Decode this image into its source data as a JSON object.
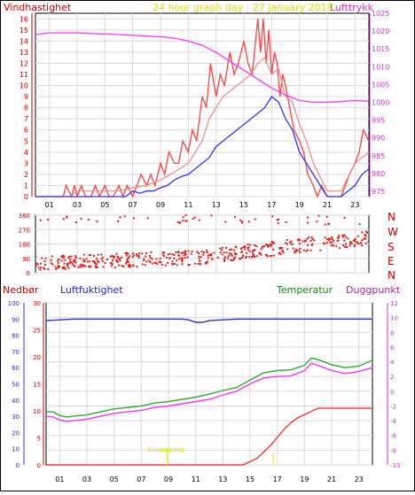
{
  "header": {
    "left_label": "Vindhastighet",
    "title": "24 hour graph day : 27 January 2018",
    "right_label": "Lufttrykk"
  },
  "bottom_labels": {
    "nedbor": "Nedbør",
    "luftfuktighet": "Luftfuktighet",
    "temperatur": "Temperatur",
    "duggpunkt": "Duggpunkt",
    "soloppgang": "Soloppgang"
  },
  "compass": [
    "N",
    "W",
    "S",
    "E",
    "N"
  ],
  "colors": {
    "wind_gust": "#ff4040",
    "wind_avg": "#ee8888",
    "wind_blue": "#3333ff",
    "pressure": "#ff33ff",
    "humidity": "#3030cc",
    "temperature": "#33aa33",
    "dewpoint": "#ff33ff",
    "rain": "#ff3333",
    "grid": "#d9d9d9"
  },
  "chart_data": [
    {
      "type": "line",
      "title": "24 hour graph day : 27 January 2018",
      "x_ticks": [
        "01",
        "03",
        "05",
        "07",
        "09",
        "11",
        "13",
        "15",
        "17",
        "19",
        "21",
        "23"
      ],
      "y_left_label": "Vindhastighet",
      "y_left_ticks": [
        "0",
        "1",
        "2",
        "3",
        "4",
        "5",
        "6",
        "7",
        "8",
        "9",
        "10",
        "11",
        "12",
        "13",
        "14",
        "15",
        "16"
      ],
      "y_left_lim": [
        0,
        16.5
      ],
      "y_right_label": "Lufttrykk",
      "y_right_ticks": [
        "975",
        "980",
        "985",
        "990",
        "995",
        "1000",
        "1005",
        "1010",
        "1015",
        "1020",
        "1025"
      ],
      "y_right_lim": [
        973.5,
        1025
      ],
      "series": [
        {
          "name": "gust",
          "axis": "left",
          "x": [
            0,
            2,
            2.2,
            2.6,
            2.8,
            3,
            3.3,
            3.6,
            4,
            4.3,
            4.6,
            5,
            5.3,
            5.6,
            6,
            6.3,
            6.6,
            7,
            7.3,
            7.6,
            8,
            8.3,
            8.6,
            9,
            9.3,
            9.6,
            10,
            10.3,
            10.6,
            11,
            11.3,
            11.6,
            12,
            12.3,
            12.6,
            13,
            13.3,
            13.6,
            14,
            14.3,
            14.6,
            15,
            15.3,
            15.6,
            16,
            16.2,
            16.4,
            16.6,
            16.8,
            17,
            17.2,
            17.4,
            17.6,
            17.8,
            18,
            18.3,
            18.6,
            19,
            19.3,
            19.6,
            20,
            20.3,
            20.6,
            21,
            21.5,
            22,
            22.3,
            22.6,
            23,
            23.3,
            23.6,
            24
          ],
          "values": [
            0,
            0,
            1,
            0,
            1,
            0,
            1,
            0,
            0,
            1,
            0,
            1,
            0,
            0,
            1,
            0,
            1,
            0,
            1,
            2,
            1,
            2,
            1,
            3,
            2,
            4,
            3,
            3,
            5,
            4,
            6,
            5,
            9,
            8,
            12,
            9,
            11,
            10,
            13,
            11,
            12,
            14,
            12,
            11,
            16,
            13,
            16,
            12,
            15,
            11,
            13,
            12,
            9,
            11,
            10,
            8,
            6,
            5,
            4,
            2,
            1,
            0,
            1,
            0,
            0,
            0,
            1,
            2,
            3,
            4,
            6,
            5
          ]
        },
        {
          "name": "avg",
          "axis": "left",
          "x": [
            0,
            2.5,
            3,
            4,
            5,
            6,
            7,
            8,
            9,
            10,
            11,
            12,
            12.5,
            13,
            13.5,
            14,
            14.5,
            15,
            15.5,
            16,
            16.5,
            17,
            17.5,
            18,
            18.5,
            19,
            19.5,
            20,
            21,
            22,
            23,
            24
          ],
          "values": [
            0,
            0,
            0.5,
            0.5,
            0.5,
            0.5,
            0.8,
            1,
            1.5,
            2.2,
            3,
            5,
            7,
            8,
            9,
            9.5,
            10,
            10.5,
            11,
            12,
            12.5,
            11,
            11.5,
            9,
            8.5,
            6.5,
            5,
            3,
            0.5,
            0.5,
            3,
            4
          ]
        },
        {
          "name": "blue",
          "axis": "left",
          "x": [
            0,
            6.5,
            7,
            7.5,
            8,
            8.5,
            9,
            9.5,
            10,
            10.5,
            11,
            11.5,
            12,
            12.5,
            13,
            13.5,
            14,
            14.5,
            15,
            15.5,
            16,
            16.5,
            17,
            17.5,
            18,
            18.5,
            19,
            19.5,
            20,
            20.5,
            21,
            22,
            22.5,
            23,
            23.5,
            24
          ],
          "values": [
            0,
            0,
            0.5,
            0.3,
            0.5,
            0.5,
            0.8,
            1,
            1.5,
            1.8,
            2,
            2.5,
            3,
            3.5,
            4.5,
            5,
            5.5,
            6,
            6.5,
            7,
            7.5,
            8,
            9,
            8.5,
            7,
            6,
            4,
            3,
            2,
            1,
            0,
            0,
            0.5,
            1,
            2,
            2.5
          ]
        },
        {
          "name": "pressure",
          "axis": "right",
          "x": [
            0,
            1,
            2,
            3,
            4,
            5,
            6,
            7,
            8,
            9,
            10,
            11,
            12,
            13,
            14,
            15,
            16,
            17,
            18,
            19,
            20,
            21,
            22,
            23,
            24
          ],
          "values": [
            1019,
            1019.5,
            1019.5,
            1019.5,
            1019.3,
            1019.2,
            1019,
            1018.8,
            1018.6,
            1018.4,
            1018,
            1017.2,
            1016,
            1014,
            1011.5,
            1009,
            1006.5,
            1004,
            1002,
            1000.5,
            1000,
            1000,
            1000.2,
            1000.5,
            1000.3
          ]
        }
      ]
    },
    {
      "type": "scatter",
      "title": "",
      "y_ticks": [
        "360",
        "270",
        "180",
        "90",
        "0"
      ],
      "y_lim": [
        0,
        360
      ],
      "x_ticks": [
        "01",
        "03",
        "05",
        "07",
        "09",
        "11",
        "13",
        "15",
        "17",
        "19",
        "21",
        "23"
      ]
    },
    {
      "type": "line",
      "title": "",
      "x_ticks": [
        "01",
        "03",
        "05",
        "07",
        "09",
        "11",
        "13",
        "15",
        "17",
        "19",
        "21",
        "23"
      ],
      "y_rain_ticks": [
        "0",
        "10",
        "20",
        "30",
        "40",
        "50",
        "60",
        "70",
        "80",
        "90",
        "100"
      ],
      "y_hum_ticks": [
        "0",
        "5",
        "10",
        "15",
        "20",
        "25",
        "30"
      ],
      "y_temp_ticks": [
        "-10",
        "-8",
        "-6",
        "-4",
        "-2",
        "0",
        "2",
        "4",
        "6",
        "8",
        "10",
        "12"
      ],
      "y_temp_lim": [
        -10,
        12
      ],
      "series": [
        {
          "name": "Luftfuktighet",
          "axis": "left",
          "x": [
            0,
            1,
            2,
            4,
            6,
            8,
            10,
            10.5,
            11,
            11.5,
            12,
            14,
            16,
            18,
            20,
            22,
            24
          ],
          "values": [
            89,
            89.5,
            90,
            90,
            90,
            90,
            90,
            89.5,
            88,
            88,
            89,
            90,
            90,
            90,
            90,
            90,
            90
          ]
        },
        {
          "name": "Temperatur",
          "axis": "right",
          "x": [
            0,
            0.5,
            1,
            1.5,
            2,
            3,
            4,
            5,
            6,
            7,
            8,
            9,
            10,
            11,
            12,
            13,
            14,
            15,
            16,
            17,
            18,
            19,
            19.5,
            20,
            21,
            22,
            23,
            24
          ],
          "values": [
            -2.8,
            -2.8,
            -3.3,
            -3.5,
            -3.4,
            -3.2,
            -2.8,
            -2.4,
            -2.2,
            -2,
            -1.6,
            -1.4,
            -1.1,
            -0.8,
            -0.4,
            0.1,
            0.5,
            1.5,
            2.5,
            2.8,
            2.9,
            3.5,
            4.5,
            4.3,
            3.6,
            3.2,
            3.4,
            4.2
          ]
        },
        {
          "name": "Duggpunkt",
          "axis": "right",
          "x": [
            0,
            0.5,
            1,
            1.5,
            2,
            3,
            4,
            5,
            6,
            7,
            8,
            9,
            10,
            11,
            12,
            13,
            14,
            15,
            16,
            17,
            18,
            19,
            19.5,
            20,
            21,
            22,
            23,
            24
          ],
          "values": [
            -3.4,
            -3.5,
            -3.9,
            -4.1,
            -4,
            -3.8,
            -3.4,
            -3,
            -2.8,
            -2.6,
            -2.2,
            -2,
            -1.7,
            -1.4,
            -1.1,
            -0.5,
            0,
            1,
            1.8,
            2,
            2.1,
            2.8,
            3.8,
            3.5,
            2.8,
            2.4,
            2.7,
            3.2
          ]
        },
        {
          "name": "Nedbør",
          "axis": "left",
          "x": [
            0,
            14.5,
            15,
            15.5,
            16,
            16.5,
            17,
            17.5,
            18,
            18.5,
            19,
            19.5,
            20,
            22,
            24
          ],
          "values": [
            0,
            0,
            2,
            4,
            8,
            12,
            17,
            22,
            26,
            29,
            31,
            33,
            35,
            35,
            35
          ]
        }
      ]
    }
  ]
}
